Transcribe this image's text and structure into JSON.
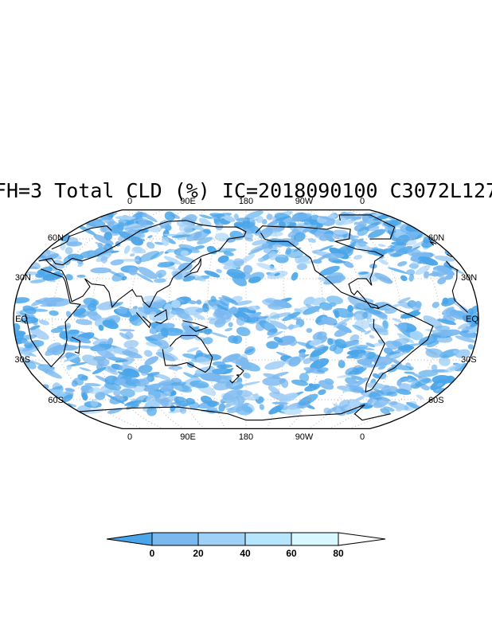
{
  "title": "FH=3 Total CLD (%) IC=2018090100 C3072L127",
  "map": {
    "projection": "robinson",
    "central_longitude": 180,
    "ocean_color": "#ffffff",
    "cloud_colors": [
      "#4aa6ea",
      "#7ab8f0",
      "#a6d3f8",
      "#c6ecfb",
      "#e6fbff"
    ],
    "coastline_color": "#000000",
    "graticule_color": "#b4b4b4",
    "top_lon_labels": [
      "0",
      "90E",
      "180",
      "90W",
      "0"
    ],
    "bottom_lon_labels": [
      "0",
      "90E",
      "180",
      "90W",
      "0"
    ],
    "left_lat_labels": [
      "60N",
      "30N",
      "EQ",
      "30S",
      "60S"
    ],
    "right_lat_labels": [
      "60N",
      "30N",
      "EQ",
      "30S",
      "60S"
    ]
  },
  "colorbar": {
    "levels": [
      "0",
      "20",
      "40",
      "60",
      "80"
    ],
    "colors": [
      "#4aa6ea",
      "#7ab8f0",
      "#9fd0f6",
      "#b6e6fb",
      "#d8f8ff",
      "#ffffff"
    ]
  }
}
